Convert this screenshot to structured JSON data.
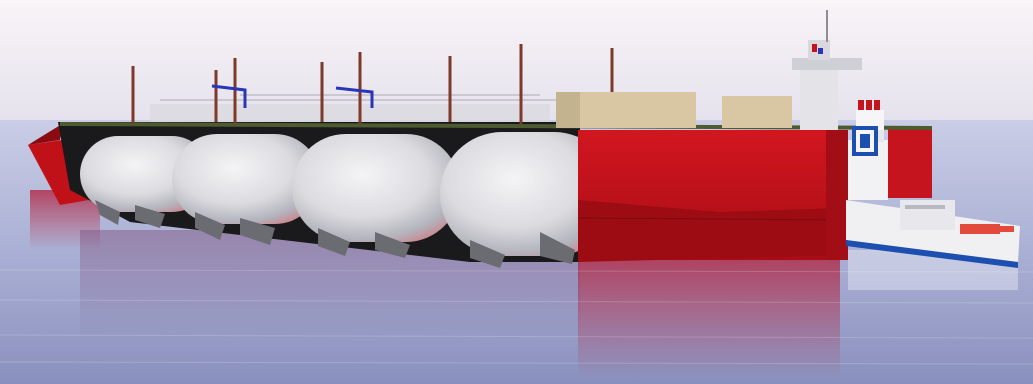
{
  "image": {
    "subject": "lng-barge-with-tugboat",
    "colors": {
      "sky_top": "#f7f3f6",
      "sky_bottom": "#e7e3ee",
      "water_top": "#c7cbe4",
      "water_bottom": "#8e94bf",
      "hull_red": "#c4121b",
      "hull_dark": "#7b0a10",
      "tank_white": "#e8e8ea",
      "tank_shadow": "#a9a9b2",
      "deck_green": "#4d5b2f",
      "module_beige": "#d9c9a6",
      "pipe_blue": "#2a35b8",
      "tug_white": "#eeeeee",
      "tug_blue": "#1c4fb0"
    }
  }
}
